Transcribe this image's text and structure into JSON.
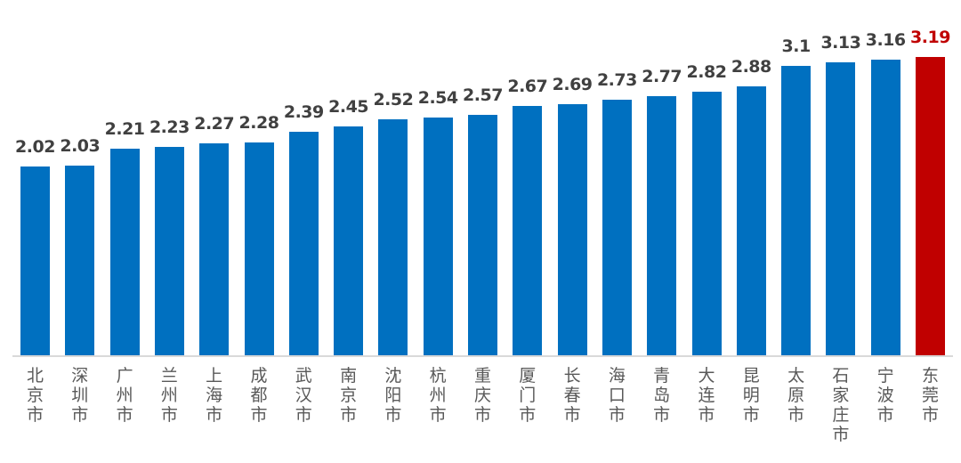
{
  "chart_data": {
    "type": "bar",
    "title": "",
    "xlabel": "",
    "ylabel": "",
    "ylim": [
      0,
      3.5
    ],
    "grid": false,
    "legend": null,
    "categories": [
      "北京市",
      "深圳市",
      "广州市",
      "兰州市",
      "上海市",
      "成都市",
      "武汉市",
      "南京市",
      "沈阳市",
      "杭州市",
      "重庆市",
      "厦门市",
      "长春市",
      "海口市",
      "青岛市",
      "大连市",
      "昆明市",
      "太原市",
      "石家庄市",
      "宁波市",
      "东莞市"
    ],
    "values": [
      2.02,
      2.03,
      2.21,
      2.23,
      2.27,
      2.28,
      2.39,
      2.45,
      2.52,
      2.54,
      2.57,
      2.67,
      2.69,
      2.73,
      2.77,
      2.82,
      2.88,
      3.1,
      3.13,
      3.16,
      3.19
    ],
    "labels": [
      "2.02",
      "2.03",
      "2.21",
      "2.23",
      "2.27",
      "2.28",
      "2.39",
      "2.45",
      "2.52",
      "2.54",
      "2.57",
      "2.67",
      "2.69",
      "2.73",
      "2.77",
      "2.82",
      "2.88",
      "3.1",
      "3.13",
      "3.16",
      "3.19"
    ],
    "highlight_index": 20
  },
  "colors": {
    "bar": "#0070C0",
    "highlight_bar": "#C00000",
    "label": "#404040",
    "highlight_label": "#C00000",
    "axis": "#d9d9d9",
    "category": "#595959"
  }
}
